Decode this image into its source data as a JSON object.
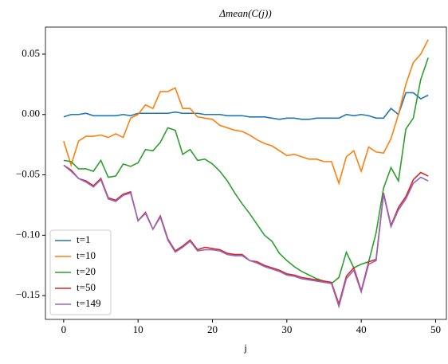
{
  "chart_data": {
    "type": "line",
    "title": "Δmean(C(j))",
    "x_label": "j",
    "x": [
      0,
      1,
      2,
      3,
      4,
      5,
      6,
      7,
      8,
      9,
      10,
      11,
      12,
      13,
      14,
      15,
      16,
      17,
      18,
      19,
      20,
      21,
      22,
      23,
      24,
      25,
      26,
      27,
      28,
      29,
      30,
      31,
      32,
      33,
      34,
      35,
      36,
      37,
      38,
      39,
      40,
      41,
      42,
      43,
      44,
      45,
      46,
      47,
      48,
      49
    ],
    "series": [
      {
        "name": "t=1",
        "color": "#1f77b4",
        "values": [
          -0.002,
          0,
          0,
          0.001,
          -0.001,
          -0.001,
          -0.001,
          -0.001,
          0,
          -0.001,
          0.001,
          0.001,
          0.001,
          0.001,
          0.001,
          0.002,
          0.001,
          0.001,
          0.001,
          0,
          0,
          0,
          -0.001,
          -0.001,
          -0.001,
          -0.002,
          -0.002,
          -0.002,
          -0.003,
          -0.004,
          -0.003,
          -0.003,
          -0.004,
          -0.004,
          -0.003,
          -0.003,
          -0.003,
          -0.003,
          0,
          -0.001,
          0,
          -0.001,
          -0.003,
          -0.003,
          0.005,
          0,
          0.018,
          0.018,
          0.013,
          0.016
        ]
      },
      {
        "name": "t=10",
        "color": "#ff7f0e",
        "values": [
          -0.022,
          -0.042,
          -0.022,
          -0.018,
          -0.018,
          -0.017,
          -0.019,
          -0.016,
          -0.019,
          -0.003,
          0,
          0.008,
          0.005,
          0.019,
          0.019,
          0.022,
          0.005,
          0.005,
          -0.002,
          -0.003,
          -0.004,
          -0.009,
          -0.011,
          -0.013,
          -0.014,
          -0.017,
          -0.021,
          -0.024,
          -0.026,
          -0.03,
          -0.034,
          -0.033,
          -0.035,
          -0.037,
          -0.037,
          -0.039,
          -0.039,
          -0.057,
          -0.035,
          -0.03,
          -0.047,
          -0.027,
          -0.031,
          -0.032,
          -0.02,
          0,
          0.025,
          0.043,
          0.05,
          0.062
        ]
      },
      {
        "name": "t=20",
        "color": "#2ca02c",
        "values": [
          -0.038,
          -0.039,
          -0.045,
          -0.045,
          -0.047,
          -0.038,
          -0.052,
          -0.051,
          -0.041,
          -0.043,
          -0.04,
          -0.029,
          -0.03,
          -0.023,
          -0.011,
          -0.013,
          -0.033,
          -0.029,
          -0.038,
          -0.037,
          -0.041,
          -0.047,
          -0.055,
          -0.065,
          -0.074,
          -0.082,
          -0.091,
          -0.1,
          -0.105,
          -0.115,
          -0.121,
          -0.126,
          -0.13,
          -0.133,
          -0.136,
          -0.138,
          -0.14,
          -0.135,
          -0.114,
          -0.127,
          -0.124,
          -0.122,
          -0.098,
          -0.061,
          -0.044,
          -0.055,
          -0.012,
          -0.003,
          0.029,
          0.047
        ]
      },
      {
        "name": "t=50",
        "color": "#d62728",
        "values": [
          -0.042,
          -0.046,
          -0.053,
          -0.055,
          -0.059,
          -0.053,
          -0.069,
          -0.071,
          -0.066,
          -0.064,
          -0.088,
          -0.081,
          -0.095,
          -0.084,
          -0.103,
          -0.113,
          -0.109,
          -0.104,
          -0.112,
          -0.11,
          -0.111,
          -0.112,
          -0.115,
          -0.116,
          -0.116,
          -0.121,
          -0.122,
          -0.125,
          -0.127,
          -0.129,
          -0.132,
          -0.133,
          -0.135,
          -0.136,
          -0.137,
          -0.138,
          -0.139,
          -0.157,
          -0.134,
          -0.127,
          -0.146,
          -0.122,
          -0.12,
          -0.065,
          -0.092,
          -0.077,
          -0.068,
          -0.054,
          -0.048,
          -0.051
        ]
      },
      {
        "name": "t=149",
        "color": "#9467bd",
        "values": [
          -0.042,
          -0.047,
          -0.053,
          -0.056,
          -0.06,
          -0.054,
          -0.07,
          -0.072,
          -0.067,
          -0.065,
          -0.088,
          -0.082,
          -0.095,
          -0.085,
          -0.104,
          -0.114,
          -0.11,
          -0.105,
          -0.113,
          -0.112,
          -0.112,
          -0.113,
          -0.116,
          -0.117,
          -0.117,
          -0.121,
          -0.123,
          -0.126,
          -0.128,
          -0.13,
          -0.133,
          -0.134,
          -0.136,
          -0.137,
          -0.138,
          -0.139,
          -0.14,
          -0.159,
          -0.136,
          -0.129,
          -0.147,
          -0.124,
          -0.121,
          -0.066,
          -0.093,
          -0.079,
          -0.07,
          -0.057,
          -0.052,
          -0.055
        ]
      }
    ],
    "xlim": [
      -2.45,
      51.45
    ],
    "ylim": [
      -0.1697,
      0.0724
    ],
    "xticks": [
      0,
      10,
      20,
      30,
      40,
      50
    ],
    "yticks": [
      {
        "value": -0.15,
        "label": "−0.15"
      },
      {
        "value": -0.1,
        "label": "−0.10"
      },
      {
        "value": -0.05,
        "label": "−0.05"
      },
      {
        "value": 0,
        "label": "0.00"
      },
      0.05
    ],
    "legend": "lower left"
  }
}
